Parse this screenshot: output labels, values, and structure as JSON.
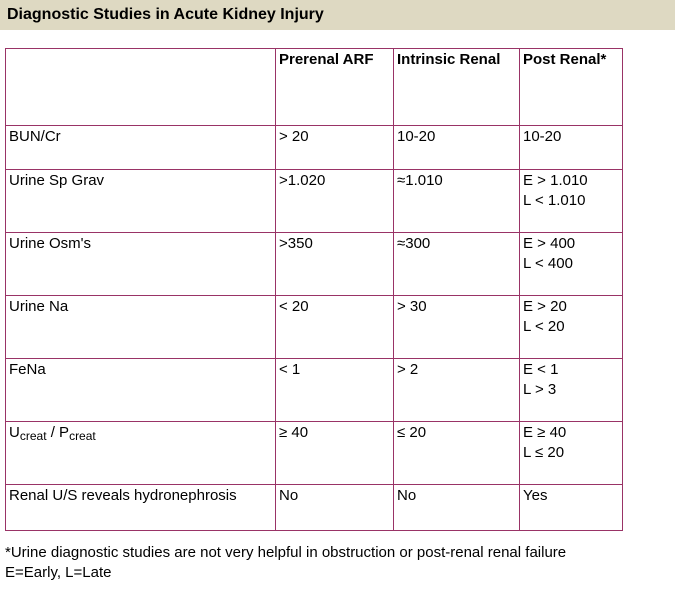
{
  "page_title": "Diagnostic Studies in Acute Kidney Injury",
  "colors": {
    "title_bar_bg": "#ded9c2",
    "table_border": "#993366",
    "text": "#000000"
  },
  "table": {
    "columns": [
      "",
      "Prerenal ARF",
      "Intrinsic Renal",
      "Post Renal*"
    ],
    "rows": [
      {
        "label": "BUN/Cr",
        "prerenal": "> 20",
        "intrinsic": "10-20",
        "postrenal": "10-20"
      },
      {
        "label": "Urine Sp Grav",
        "prerenal": ">1.020",
        "intrinsic": "≈1.010",
        "postrenal": "E > 1.010\nL < 1.010"
      },
      {
        "label": "Urine Osm's",
        "prerenal": ">350",
        "intrinsic": "≈300",
        "postrenal": "E > 400\nL < 400"
      },
      {
        "label": "Urine Na",
        "prerenal": "< 20",
        "intrinsic": "> 30",
        "postrenal": "E > 20\nL < 20"
      },
      {
        "label": "FeNa",
        "prerenal": "< 1",
        "intrinsic": "> 2",
        "postrenal": "E < 1\nL > 3"
      },
      {
        "label_parts": {
          "base_1": "U",
          "sub_1": "creat",
          "separator": " / ",
          "base_2": "P",
          "sub_2": "creat"
        },
        "prerenal": "≥ 40",
        "intrinsic": "≤ 20",
        "postrenal": "E ≥ 40\nL ≤ 20"
      },
      {
        "label": "Renal U/S reveals hydronephrosis",
        "prerenal": "No",
        "intrinsic": "No",
        "postrenal": "Yes"
      }
    ]
  },
  "footnotes": {
    "line1": "*Urine diagnostic studies are not very helpful in obstruction or post-renal renal failure",
    "line2": "E=Early, L=Late"
  }
}
